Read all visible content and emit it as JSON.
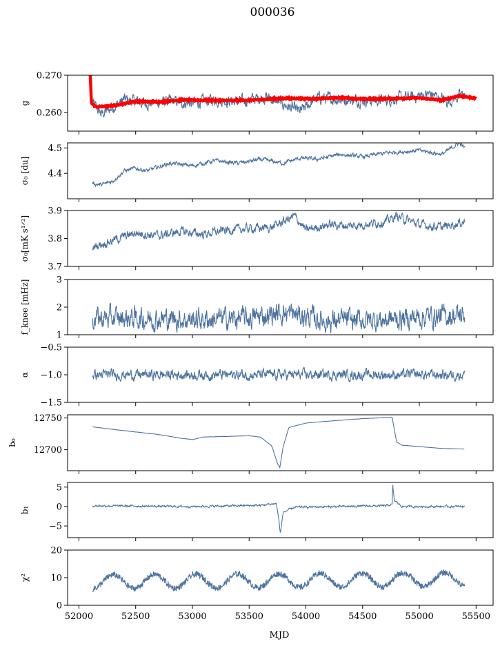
{
  "figure": {
    "title": "000036"
  },
  "colors": {
    "series": "#4c72a0",
    "fit": "#ff0000",
    "axis": "#000000"
  },
  "chart_data": [
    {
      "type": "line",
      "name": "g",
      "ylabel": "g",
      "ylim": [
        0.255,
        0.27
      ],
      "yticks": [
        "0.260",
        "0.270"
      ],
      "ytick_values": [
        0.26,
        0.27
      ],
      "ytick_labels": [
        "0.260",
        "0.270"
      ],
      "xlim": [
        51900,
        55650
      ],
      "x_range": [
        52120,
        55400
      ],
      "series": [
        {
          "kind": "noisy",
          "mean": 0.2628,
          "amp": 0.0012,
          "points": [
            [
              52120,
              0.2625
            ],
            [
              52200,
              0.2595
            ],
            [
              52280,
              0.261
            ],
            [
              52400,
              0.2635
            ],
            [
              52600,
              0.2625
            ],
            [
              52800,
              0.263
            ],
            [
              53000,
              0.2625
            ],
            [
              53200,
              0.2635
            ],
            [
              53400,
              0.2628
            ],
            [
              53650,
              0.2642
            ],
            [
              53950,
              0.2602
            ],
            [
              54100,
              0.264
            ],
            [
              54300,
              0.2635
            ],
            [
              54600,
              0.2632
            ],
            [
              54900,
              0.264
            ],
            [
              55100,
              0.265
            ],
            [
              55250,
              0.263
            ],
            [
              55400,
              0.265
            ]
          ]
        },
        {
          "kind": "fit",
          "points": [
            [
              52100,
              0.27
            ],
            [
              52110,
              0.2625
            ],
            [
              52150,
              0.2615
            ],
            [
              52300,
              0.2618
            ],
            [
              52500,
              0.263
            ],
            [
              52700,
              0.2628
            ],
            [
              52900,
              0.2634
            ],
            [
              53200,
              0.2632
            ],
            [
              53500,
              0.2633
            ],
            [
              53800,
              0.2638
            ],
            [
              54100,
              0.2637
            ],
            [
              54300,
              0.264
            ],
            [
              54500,
              0.2636
            ],
            [
              54800,
              0.2638
            ],
            [
              55000,
              0.2639
            ],
            [
              55200,
              0.2633
            ],
            [
              55350,
              0.2645
            ],
            [
              55500,
              0.2638
            ]
          ]
        }
      ]
    },
    {
      "type": "line",
      "name": "sigma0-du",
      "ylabel": "σ₀ [du]",
      "ylim": [
        4.3,
        4.52
      ],
      "ytick_values": [
        4.4,
        4.5
      ],
      "ytick_labels": [
        "4.4",
        "4.5"
      ],
      "xlim": [
        51900,
        55650
      ],
      "series": [
        {
          "kind": "noisy",
          "amp": 0.006,
          "points": [
            [
              52120,
              4.36
            ],
            [
              52200,
              4.355
            ],
            [
              52300,
              4.37
            ],
            [
              52400,
              4.41
            ],
            [
              52500,
              4.42
            ],
            [
              52600,
              4.41
            ],
            [
              52800,
              4.44
            ],
            [
              53000,
              4.43
            ],
            [
              53200,
              4.45
            ],
            [
              53400,
              4.44
            ],
            [
              53600,
              4.455
            ],
            [
              53800,
              4.44
            ],
            [
              53950,
              4.46
            ],
            [
              54100,
              4.455
            ],
            [
              54300,
              4.475
            ],
            [
              54500,
              4.465
            ],
            [
              54700,
              4.48
            ],
            [
              55000,
              4.49
            ],
            [
              55200,
              4.475
            ],
            [
              55350,
              4.52
            ],
            [
              55400,
              4.5
            ]
          ]
        }
      ]
    },
    {
      "type": "line",
      "name": "sigma0-mk",
      "ylabel": "σ₀[mK s¹ᐟ²]",
      "ylim": [
        3.7,
        3.9
      ],
      "ytick_values": [
        3.7,
        3.8,
        3.9
      ],
      "ytick_labels": [
        "3.7",
        "3.8",
        "3.9"
      ],
      "xlim": [
        51900,
        55650
      ],
      "series": [
        {
          "kind": "noisy",
          "amp": 0.012,
          "points": [
            [
              52120,
              3.77
            ],
            [
              52200,
              3.78
            ],
            [
              52350,
              3.8
            ],
            [
              52500,
              3.82
            ],
            [
              52700,
              3.81
            ],
            [
              52900,
              3.825
            ],
            [
              53100,
              3.815
            ],
            [
              53300,
              3.83
            ],
            [
              53500,
              3.835
            ],
            [
              53700,
              3.84
            ],
            [
              53900,
              3.88
            ],
            [
              54000,
              3.83
            ],
            [
              54200,
              3.85
            ],
            [
              54400,
              3.845
            ],
            [
              54700,
              3.86
            ],
            [
              54800,
              3.88
            ],
            [
              55000,
              3.85
            ],
            [
              55200,
              3.84
            ],
            [
              55400,
              3.86
            ]
          ]
        }
      ]
    },
    {
      "type": "line",
      "name": "fknee",
      "ylabel": "f_knee [mHz]",
      "ylim": [
        1,
        3
      ],
      "ytick_values": [
        1,
        2,
        3
      ],
      "ytick_labels": [
        "1",
        "2",
        "3"
      ],
      "xlim": [
        51900,
        55650
      ],
      "series": [
        {
          "kind": "noisy",
          "amp": 0.3,
          "points": [
            [
              52120,
              1.6
            ],
            [
              52500,
              1.6
            ],
            [
              53000,
              1.55
            ],
            [
              53500,
              1.6
            ],
            [
              53800,
              1.8
            ],
            [
              54200,
              1.5
            ],
            [
              54800,
              1.55
            ],
            [
              55000,
              1.65
            ],
            [
              55400,
              1.7
            ]
          ]
        }
      ]
    },
    {
      "type": "line",
      "name": "alpha",
      "ylabel": "α",
      "ylim": [
        -1.5,
        -0.5
      ],
      "ytick_values": [
        -1.5,
        -1.0,
        -0.5
      ],
      "ytick_labels": [
        "−1.5",
        "−1.0",
        "−0.5"
      ],
      "xlim": [
        51900,
        55650
      ],
      "series": [
        {
          "kind": "noisy",
          "amp": 0.07,
          "points": [
            [
              52120,
              -1.0
            ],
            [
              53000,
              -1.0
            ],
            [
              54000,
              -1.0
            ],
            [
              55400,
              -1.0
            ]
          ]
        }
      ]
    },
    {
      "type": "line",
      "name": "b0",
      "ylabel": "b₀",
      "ylim": [
        12667,
        12755
      ],
      "ytick_values": [
        12700,
        12750
      ],
      "ytick_labels": [
        "12700",
        "12750"
      ],
      "xlim": [
        51900,
        55650
      ],
      "series": [
        {
          "kind": "smooth",
          "amp": 0.3,
          "points": [
            [
              52120,
              12736
            ],
            [
              52300,
              12732
            ],
            [
              52500,
              12728
            ],
            [
              52700,
              12724
            ],
            [
              52900,
              12718
            ],
            [
              53000,
              12716
            ],
            [
              53100,
              12720
            ],
            [
              53300,
              12721
            ],
            [
              53500,
              12722
            ],
            [
              53600,
              12720
            ],
            [
              53700,
              12706
            ],
            [
              53750,
              12678
            ],
            [
              53770,
              12672
            ],
            [
              53800,
              12705
            ],
            [
              53850,
              12735
            ],
            [
              54000,
              12742
            ],
            [
              54200,
              12745
            ],
            [
              54500,
              12749
            ],
            [
              54760,
              12751
            ],
            [
              54800,
              12712
            ],
            [
              54850,
              12707
            ],
            [
              55000,
              12705
            ],
            [
              55200,
              12702
            ],
            [
              55400,
              12701
            ]
          ]
        }
      ]
    },
    {
      "type": "line",
      "name": "b1",
      "ylabel": "b₁",
      "ylim": [
        -8,
        6.2
      ],
      "ytick_values": [
        -5,
        0,
        5
      ],
      "ytick_labels": [
        "−5",
        "0",
        "5"
      ],
      "xlim": [
        51900,
        55650
      ],
      "series": [
        {
          "kind": "noisy",
          "amp": 0.2,
          "points": [
            [
              52120,
              0.2
            ],
            [
              53000,
              0.0
            ],
            [
              53600,
              0.3
            ],
            [
              53740,
              0.8
            ],
            [
              53760,
              -3.0
            ],
            [
              53775,
              -7.0
            ],
            [
              53800,
              -1.5
            ],
            [
              53900,
              -0.2
            ],
            [
              54700,
              0.2
            ],
            [
              54760,
              0.5
            ],
            [
              54765,
              5.5
            ],
            [
              54780,
              1.5
            ],
            [
              54850,
              0.0
            ],
            [
              55400,
              0.0
            ]
          ]
        }
      ]
    },
    {
      "type": "line",
      "name": "chi2",
      "ylabel": "χ²",
      "xlabel": "MJD",
      "ylim": [
        0,
        20
      ],
      "ytick_values": [
        0,
        10,
        20
      ],
      "ytick_labels": [
        "0",
        "10",
        "20"
      ],
      "xlim": [
        51900,
        55650
      ],
      "xtick_values": [
        52000,
        52500,
        53000,
        53500,
        54000,
        54500,
        55000,
        55500
      ],
      "xtick_labels": [
        "52000",
        "52500",
        "53000",
        "53500",
        "54000",
        "54500",
        "55000",
        "55500"
      ],
      "series": [
        {
          "kind": "periodic",
          "mean": 8.5,
          "amp": 2.5,
          "period": 365,
          "points": [
            [
              52120,
              7
            ],
            [
              55400,
              10
            ]
          ]
        }
      ]
    }
  ]
}
